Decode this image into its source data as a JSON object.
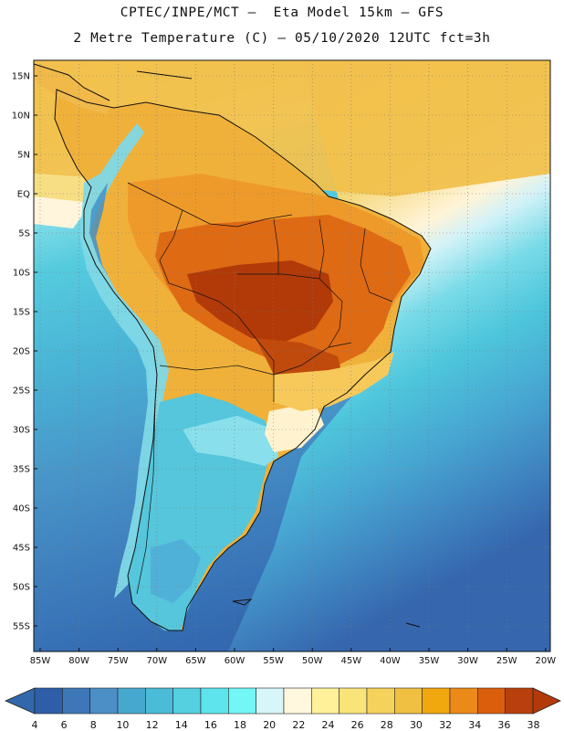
{
  "title": {
    "line1": "CPTEC/INPE/MCT –  Eta Model 15km – GFS",
    "line2": "2 Metre Temperature (C) – 05/10/2020 12UTC fct=3h"
  },
  "map": {
    "lat_labels": [
      "15N",
      "10N",
      "5N",
      "EQ",
      "5S",
      "10S",
      "15S",
      "20S",
      "25S",
      "30S",
      "35S",
      "40S",
      "45S",
      "50S",
      "55S"
    ],
    "lon_labels": [
      "85W",
      "80W",
      "75W",
      "70W",
      "65W",
      "60W",
      "55W",
      "50W",
      "45W",
      "40W",
      "35W",
      "30W",
      "25W",
      "20W"
    ],
    "colors": {
      "ocean_north": "#F2CD58",
      "ocean_south_deep": "#3A75B6",
      "hot_core": "#B13A08"
    }
  },
  "colorbar": {
    "labels": [
      "4",
      "6",
      "8",
      "10",
      "12",
      "14",
      "16",
      "18",
      "20",
      "22",
      "24",
      "26",
      "28",
      "30",
      "32",
      "34",
      "36",
      "38"
    ],
    "colors": [
      "#2F5EA8",
      "#3E77B8",
      "#4C8FC6",
      "#47A8CF",
      "#4ABCD8",
      "#55D0E0",
      "#5EE4EC",
      "#72F6F6",
      "#D6F6FA",
      "#FFF7DE",
      "#FFF19A",
      "#F9E47A",
      "#F5D25C",
      "#EFC042",
      "#F1A70E",
      "#EC8A19",
      "#DB5E0D",
      "#B9400C"
    ],
    "min_color": "#3168AC",
    "max_color": "#B13A08",
    "unit": "C"
  }
}
